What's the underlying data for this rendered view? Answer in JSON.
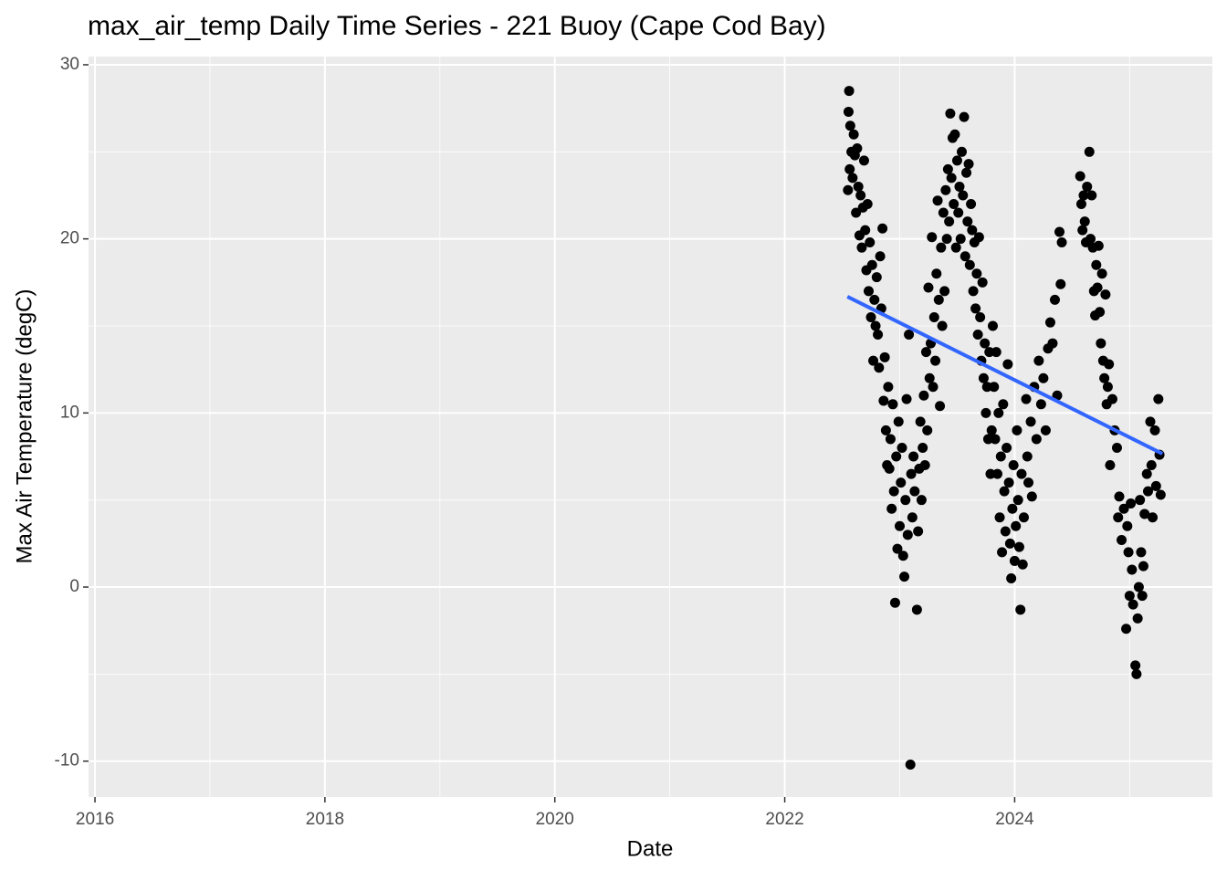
{
  "chart_data": {
    "type": "scatter",
    "title": "max_air_temp Daily Time Series - 221 Buoy (Cape Cod Bay)",
    "x_label": "Date",
    "y_label": "Max Air Temperature (degC)",
    "xlim": [
      2015.944,
      2025.72
    ],
    "ylim": [
      -12.06,
      30.47
    ],
    "xticks": [
      2016,
      2018,
      2020,
      2022,
      2024
    ],
    "yticks": [
      -10,
      0,
      10,
      20,
      30
    ],
    "grid": true,
    "background": "#ebebeb",
    "series": [
      {
        "type": "point",
        "color": "#000000",
        "x": [
          2022.55,
          2022.555,
          2022.56,
          2022.565,
          2022.57,
          2022.58,
          2022.59,
          2022.6,
          2022.61,
          2022.62,
          2022.63,
          2022.64,
          2022.65,
          2022.66,
          2022.67,
          2022.68,
          2022.69,
          2022.7,
          2022.71,
          2022.72,
          2022.73,
          2022.74,
          2022.75,
          2022.76,
          2022.77,
          2022.78,
          2022.79,
          2022.8,
          2022.81,
          2022.82,
          2022.83,
          2022.84,
          2022.85,
          2022.86,
          2022.87,
          2022.88,
          2022.89,
          2022.9,
          2022.91,
          2022.92,
          2022.93,
          2022.94,
          2022.95,
          2022.96,
          2022.97,
          2022.98,
          2022.99,
          2023.0,
          2023.01,
          2023.02,
          2023.03,
          2023.04,
          2023.05,
          2023.06,
          2023.07,
          2023.08,
          2023.093,
          2023.1,
          2023.11,
          2023.12,
          2023.13,
          2023.15,
          2023.16,
          2023.17,
          2023.18,
          2023.19,
          2023.2,
          2023.21,
          2023.22,
          2023.23,
          2023.24,
          2023.25,
          2023.26,
          2023.27,
          2023.28,
          2023.29,
          2023.3,
          2023.31,
          2023.32,
          2023.33,
          2023.34,
          2023.35,
          2023.36,
          2023.37,
          2023.38,
          2023.39,
          2023.4,
          2023.41,
          2023.42,
          2023.43,
          2023.44,
          2023.45,
          2023.46,
          2023.47,
          2023.48,
          2023.49,
          2023.5,
          2023.51,
          2023.52,
          2023.53,
          2023.54,
          2023.55,
          2023.56,
          2023.57,
          2023.58,
          2023.59,
          2023.6,
          2023.61,
          2023.62,
          2023.63,
          2023.64,
          2023.65,
          2023.66,
          2023.67,
          2023.68,
          2023.69,
          2023.7,
          2023.71,
          2023.72,
          2023.73,
          2023.74,
          2023.75,
          2023.76,
          2023.77,
          2023.78,
          2023.79,
          2023.8,
          2023.81,
          2023.82,
          2023.83,
          2023.84,
          2023.85,
          2023.86,
          2023.87,
          2023.88,
          2023.89,
          2023.9,
          2023.91,
          2023.92,
          2023.93,
          2023.94,
          2023.95,
          2023.96,
          2023.97,
          2023.98,
          2023.99,
          2024.0,
          2024.01,
          2024.02,
          2024.03,
          2024.04,
          2024.05,
          2024.06,
          2024.07,
          2024.08,
          2024.1,
          2024.11,
          2024.12,
          2024.14,
          2024.15,
          2024.17,
          2024.19,
          2024.21,
          2024.23,
          2024.25,
          2024.27,
          2024.29,
          2024.31,
          2024.33,
          2024.35,
          2024.37,
          2024.39,
          2024.4,
          2024.41,
          2024.57,
          2024.58,
          2024.59,
          2024.6,
          2024.61,
          2024.62,
          2024.63,
          2024.65,
          2024.66,
          2024.67,
          2024.68,
          2024.69,
          2024.7,
          2024.71,
          2024.72,
          2024.73,
          2024.74,
          2024.75,
          2024.76,
          2024.77,
          2024.78,
          2024.79,
          2024.8,
          2024.81,
          2024.82,
          2024.83,
          2024.85,
          2024.87,
          2024.89,
          2024.9,
          2024.91,
          2024.93,
          2024.95,
          2024.97,
          2024.98,
          2024.99,
          2025.0,
          2025.01,
          2025.02,
          2025.03,
          2025.05,
          2025.06,
          2025.07,
          2025.08,
          2025.09,
          2025.1,
          2025.11,
          2025.12,
          2025.13,
          2025.15,
          2025.16,
          2025.18,
          2025.19,
          2025.2,
          2025.22,
          2025.23,
          2025.25,
          2025.26,
          2025.27
        ],
        "values": [
          22.8,
          27.3,
          28.5,
          24.0,
          26.5,
          25.0,
          23.5,
          26.0,
          24.8,
          21.5,
          25.2,
          23.0,
          20.2,
          22.5,
          19.5,
          21.8,
          24.5,
          20.5,
          18.2,
          22.0,
          17.0,
          19.8,
          15.5,
          18.5,
          13.0,
          16.5,
          15.0,
          17.8,
          14.5,
          12.6,
          19.0,
          16.0,
          20.6,
          10.7,
          13.2,
          9.0,
          7.0,
          11.5,
          6.8,
          8.5,
          4.5,
          10.5,
          5.5,
          -0.9,
          7.5,
          2.2,
          9.5,
          3.5,
          6.0,
          8.0,
          1.8,
          0.6,
          5.0,
          10.8,
          3.0,
          14.5,
          -10.2,
          6.5,
          4.0,
          7.5,
          5.5,
          -1.3,
          3.2,
          6.8,
          9.5,
          5.0,
          8.0,
          11.0,
          7.0,
          13.5,
          9.0,
          17.2,
          12.0,
          14.0,
          20.1,
          11.5,
          15.5,
          13.0,
          18.0,
          22.2,
          16.5,
          10.4,
          19.5,
          15.0,
          21.5,
          17.0,
          22.8,
          20.0,
          24.0,
          21.0,
          27.2,
          23.5,
          25.8,
          22.0,
          26.0,
          19.5,
          24.5,
          21.5,
          23.0,
          20.0,
          25.0,
          22.5,
          27.0,
          19.0,
          23.8,
          21.0,
          24.3,
          18.5,
          22.0,
          20.5,
          17.0,
          19.8,
          16.0,
          18.0,
          14.5,
          20.1,
          15.5,
          13.0,
          17.5,
          12.0,
          14.0,
          10.0,
          11.5,
          8.5,
          13.5,
          6.5,
          9.0,
          15.0,
          11.5,
          8.5,
          13.5,
          6.5,
          10.0,
          4.0,
          7.5,
          2.0,
          10.5,
          5.5,
          3.2,
          8.0,
          12.8,
          6.0,
          2.5,
          0.5,
          4.5,
          7.0,
          1.5,
          3.5,
          9.0,
          5.0,
          2.3,
          -1.3,
          6.5,
          1.3,
          4.0,
          10.8,
          7.5,
          6.0,
          9.5,
          5.2,
          11.5,
          8.5,
          13.0,
          10.5,
          12.0,
          9.0,
          13.7,
          15.2,
          14.0,
          16.5,
          11.0,
          20.4,
          17.4,
          19.8,
          23.6,
          22.0,
          20.5,
          22.5,
          21.0,
          19.8,
          23.0,
          25.0,
          20.0,
          22.5,
          19.5,
          17.0,
          15.6,
          18.5,
          17.2,
          19.6,
          15.8,
          14.0,
          18.0,
          13.0,
          12.0,
          16.8,
          10.5,
          11.5,
          12.8,
          7.0,
          10.8,
          9.0,
          8.0,
          4.0,
          5.2,
          2.7,
          4.5,
          -2.4,
          3.5,
          2.0,
          -0.5,
          4.8,
          1.0,
          -1.0,
          -4.5,
          -5.0,
          -1.8,
          0.0,
          5.0,
          2.0,
          -0.5,
          1.2,
          4.2,
          6.5,
          5.5,
          9.5,
          7.0,
          4.0,
          9.0,
          5.8,
          10.8,
          7.6,
          5.3
        ]
      },
      {
        "type": "line",
        "color": "#3366ff",
        "x": [
          2022.545,
          2025.285
        ],
        "values": [
          16.68,
          7.66
        ]
      }
    ]
  }
}
